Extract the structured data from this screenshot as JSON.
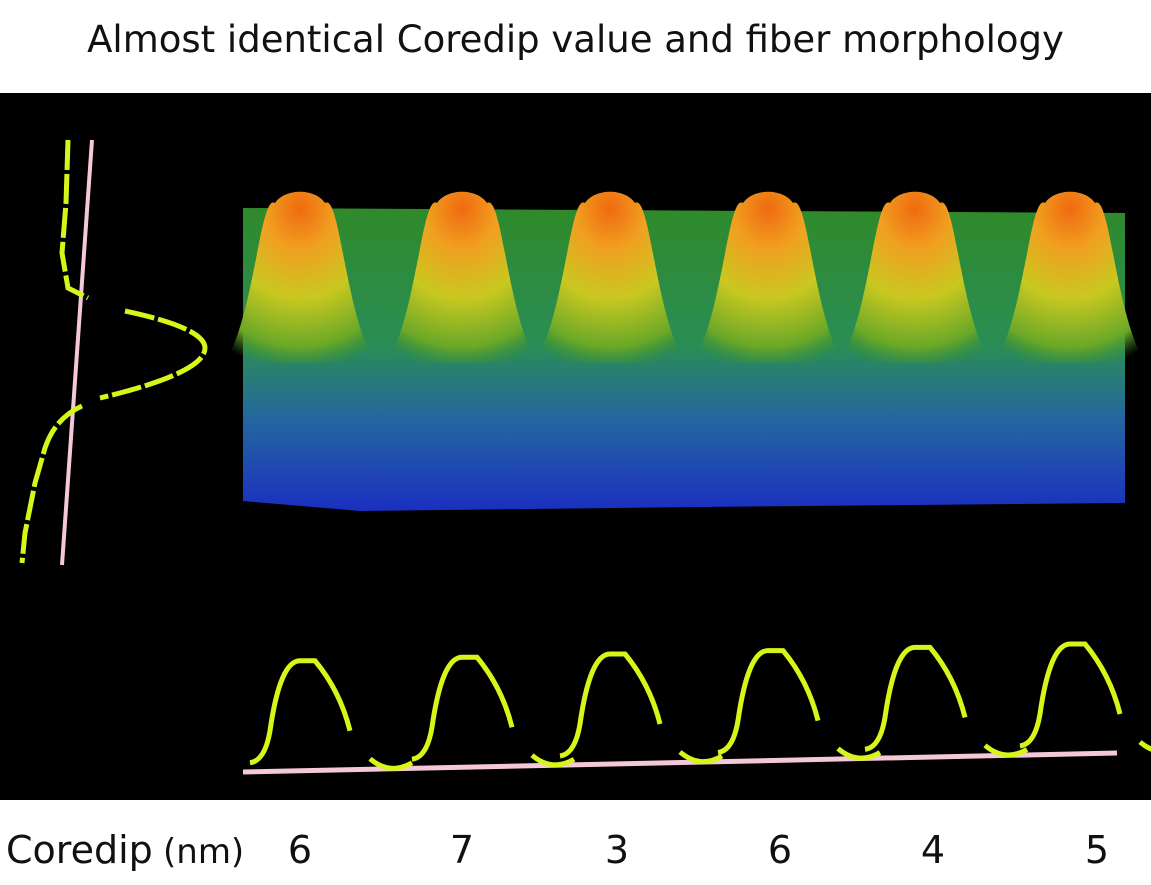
{
  "title": "Almost identical Coredip value and fiber morphology",
  "axis_label": "Coredip",
  "unit": "(nm)",
  "coredip_values": [
    "6",
    "7",
    "3",
    "6",
    "4",
    "5"
  ],
  "colors": {
    "profile": "#d8f51a",
    "baseline": "#f4c8d8",
    "background": "#000000"
  }
}
